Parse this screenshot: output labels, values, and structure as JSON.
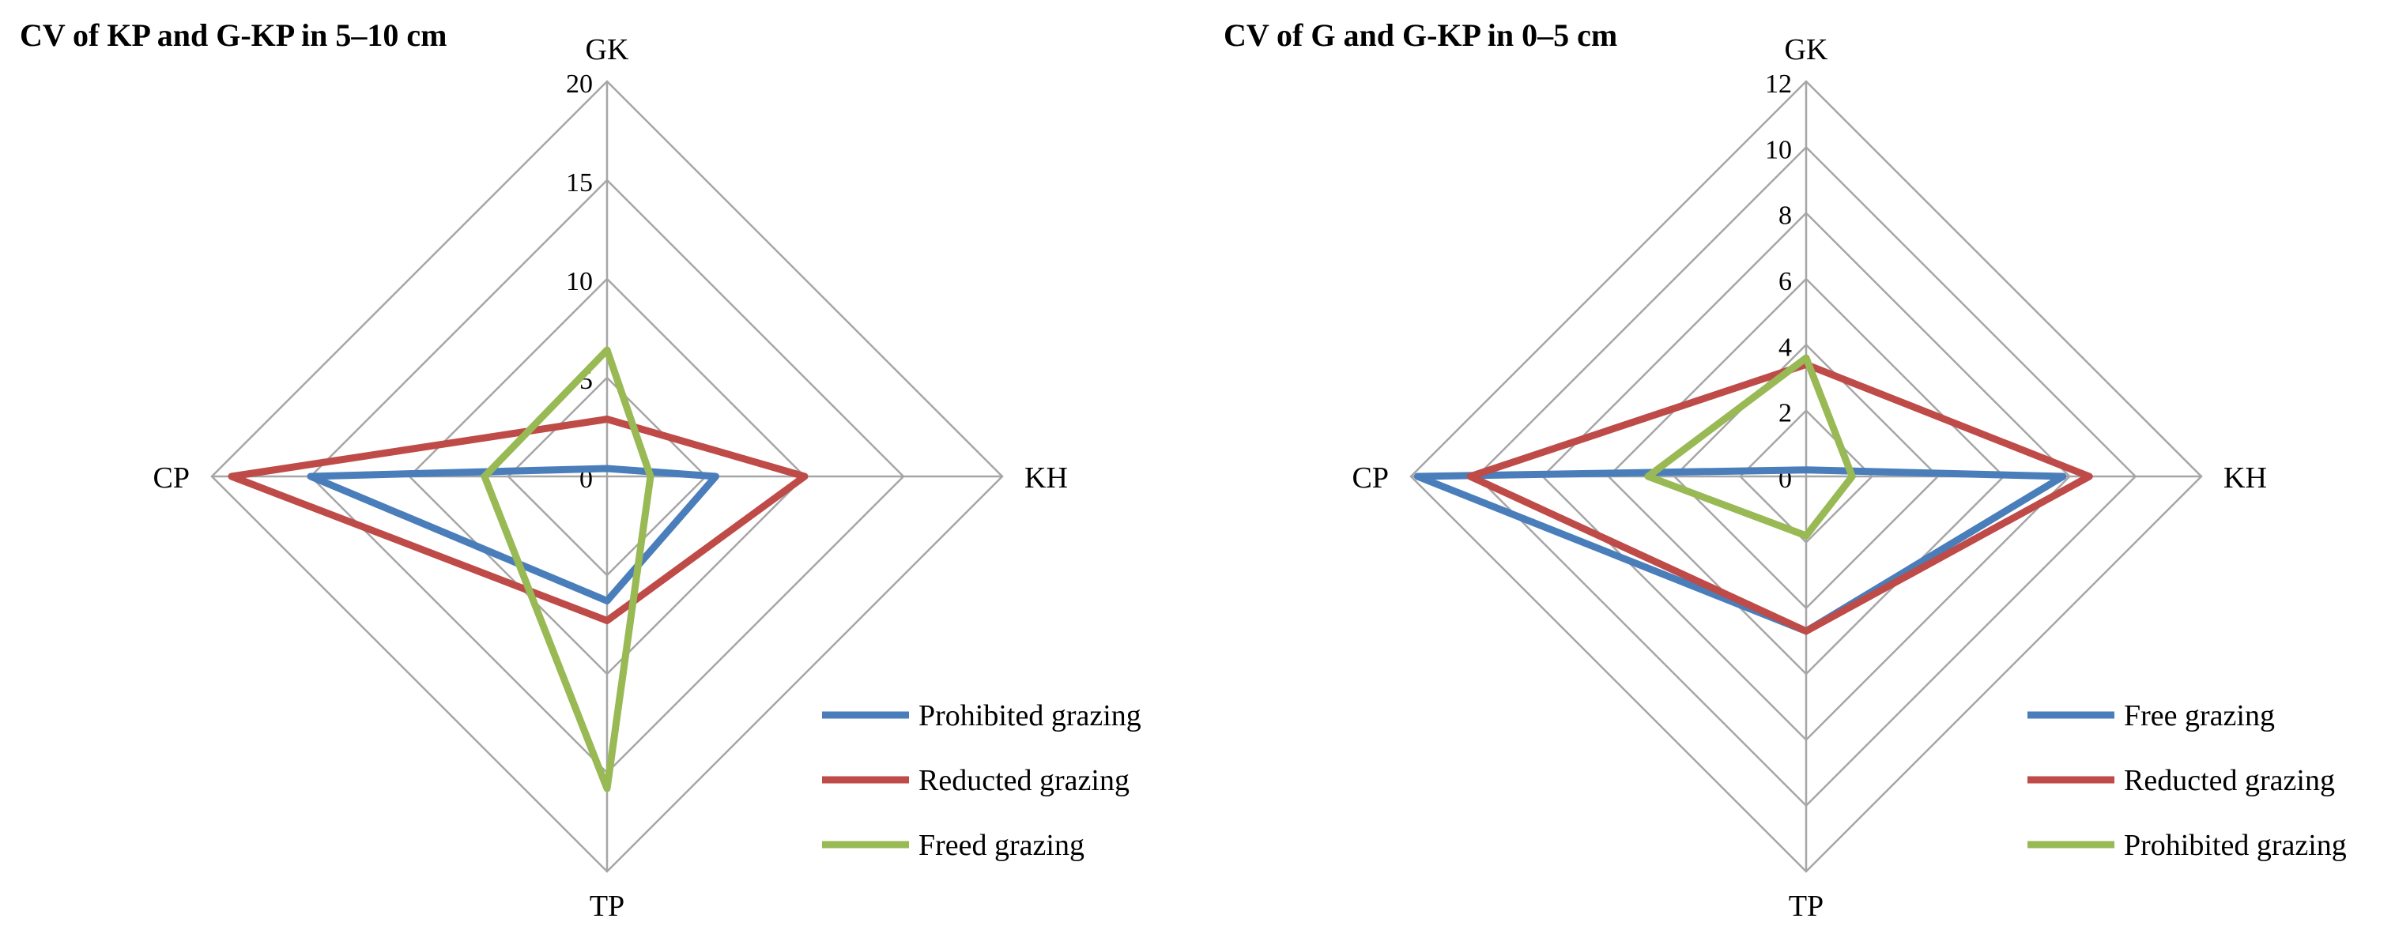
{
  "chart_data": [
    {
      "type": "radar",
      "title": "CV of  KP and G-KP  in 5–10 cm",
      "axes": [
        "GK",
        "KH",
        "TP",
        "CP"
      ],
      "rlim": [
        0,
        20
      ],
      "ticks": [
        "0",
        "5",
        "10",
        "15",
        "20"
      ],
      "grid": true,
      "legend_position": "bottom-right",
      "series": [
        {
          "name": "Prohibited grazing",
          "color": "#4a7ebb",
          "values": [
            0.4,
            5.5,
            6.3,
            15.0
          ]
        },
        {
          "name": "Reducted grazing",
          "color": "#be4b48",
          "values": [
            2.9,
            10.0,
            7.3,
            19.0
          ]
        },
        {
          "name": "Freed grazing",
          "color": "#98b954",
          "values": [
            6.4,
            2.2,
            15.8,
            6.2
          ]
        }
      ]
    },
    {
      "type": "radar",
      "title": "CV of  G and G-KP  in 0–5 cm",
      "axes": [
        "GK",
        "KH",
        "TP",
        "CP"
      ],
      "rlim": [
        0,
        12
      ],
      "ticks": [
        "0",
        "2",
        "4",
        "6",
        "8",
        "10",
        "12"
      ],
      "grid": true,
      "legend_position": "bottom-right",
      "series": [
        {
          "name": "Free grazing",
          "color": "#4a7ebb",
          "values": [
            0.2,
            7.8,
            4.7,
            11.8
          ]
        },
        {
          "name": "Reducted grazing",
          "color": "#be4b48",
          "values": [
            3.4,
            8.6,
            4.7,
            10.2
          ]
        },
        {
          "name": "Prohibited grazing",
          "color": "#98b954",
          "values": [
            3.6,
            1.4,
            1.8,
            4.8
          ]
        }
      ]
    }
  ]
}
